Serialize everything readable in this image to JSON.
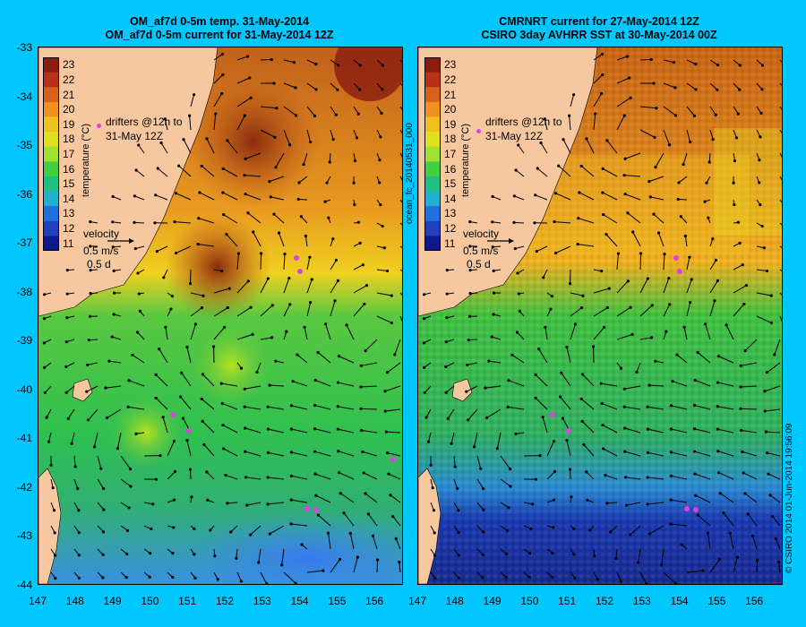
{
  "left_panel": {
    "title_line1": "OM_af7d 0-5m temp. 31-May-2014",
    "title_line2": "OM_af7d 0-5m current for 31-May-2014 12Z",
    "legend_label": "temperature (°C)",
    "drifters_label_1": "drifters @12h to",
    "drifters_label_2": "31-May 12Z",
    "velocity_label": "velocity",
    "velocity_scale_1": "0.5 m/s",
    "velocity_scale_2": "0.5 d"
  },
  "right_panel": {
    "title_line1": "CMRNRT current for 27-May-2014 12Z",
    "title_line2": "CSIRO 3day AVHRR SST at 30-May-2014 00Z",
    "legend_label": "temperature (°C)",
    "drifters_label_1": "drifters @12h to",
    "drifters_label_2": "31-May 12Z",
    "velocity_label": "velocity",
    "velocity_scale_1": "0.5 m/s",
    "velocity_scale_2": "0.5 d"
  },
  "side_label_middle": "ocean_fc_20140531_000",
  "side_label_right": "© CSIRO 2014   01-Jun-2014 19:56:09",
  "colorbar_ticks": [
    "23",
    "22",
    "21",
    "20",
    "19",
    "18",
    "17",
    "16",
    "15",
    "14",
    "13",
    "12",
    "11"
  ],
  "y_axis_ticks": [
    "-33",
    "-34",
    "-35",
    "-36",
    "-37",
    "-38",
    "-39",
    "-40",
    "-41",
    "-42",
    "-43",
    "-44"
  ],
  "x_axis_ticks": [
    "147",
    "148",
    "149",
    "150",
    "151",
    "152",
    "153",
    "154",
    "155",
    "156"
  ],
  "colors": {
    "background": "#00c8ff",
    "land": "#f7c8a0",
    "warm": "#c86414",
    "cool": "#2878ff",
    "drifter": "#e040e0"
  }
}
